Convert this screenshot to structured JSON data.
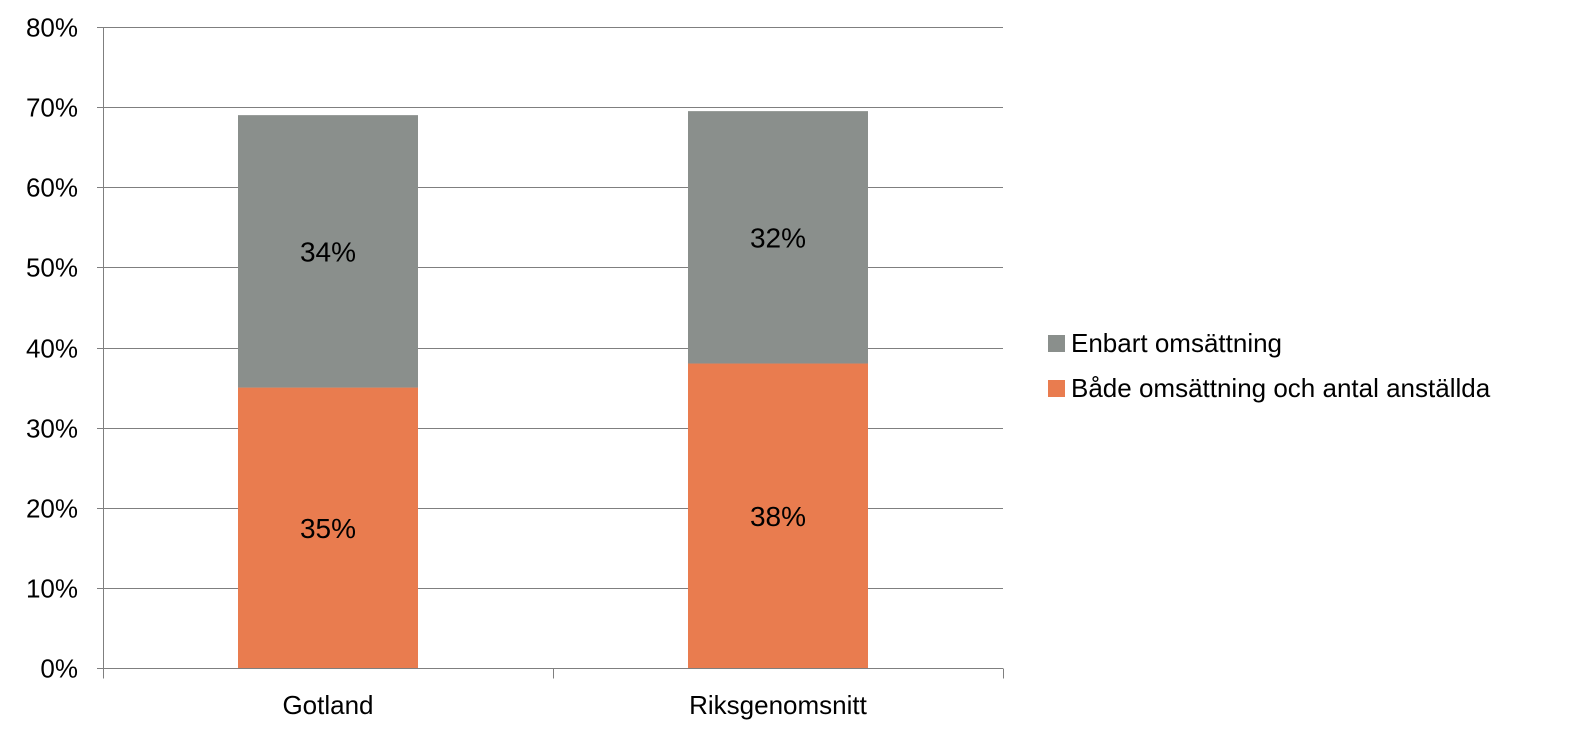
{
  "chart_data": {
    "type": "bar",
    "stacked": true,
    "categories": [
      "Gotland",
      "Riksgenomsnitt"
    ],
    "series": [
      {
        "name": "Både omsättning och antal anställda",
        "values": [
          35,
          38
        ],
        "labels": [
          "35%",
          "38%"
        ],
        "color": "#E97C4F"
      },
      {
        "name": "Enbart omsättning",
        "values": [
          34,
          32
        ],
        "labels": [
          "34%",
          "32%"
        ],
        "color": "#8A8F8C"
      }
    ],
    "totals": [
      69,
      69.5
    ],
    "ylim": [
      0,
      80
    ],
    "y_ticks": [
      0,
      10,
      20,
      30,
      40,
      50,
      60,
      70,
      80
    ],
    "y_tick_labels": [
      "0%",
      "10%",
      "20%",
      "30%",
      "40%",
      "50%",
      "60%",
      "70%",
      "80%"
    ],
    "grid": true,
    "legend_position": "right",
    "legend_order": [
      1,
      0
    ],
    "title": "",
    "xlabel": "",
    "ylabel": ""
  },
  "colors": {
    "grid": "#7F7F7F",
    "axis": "#7F7F7F",
    "text": "#000000"
  }
}
